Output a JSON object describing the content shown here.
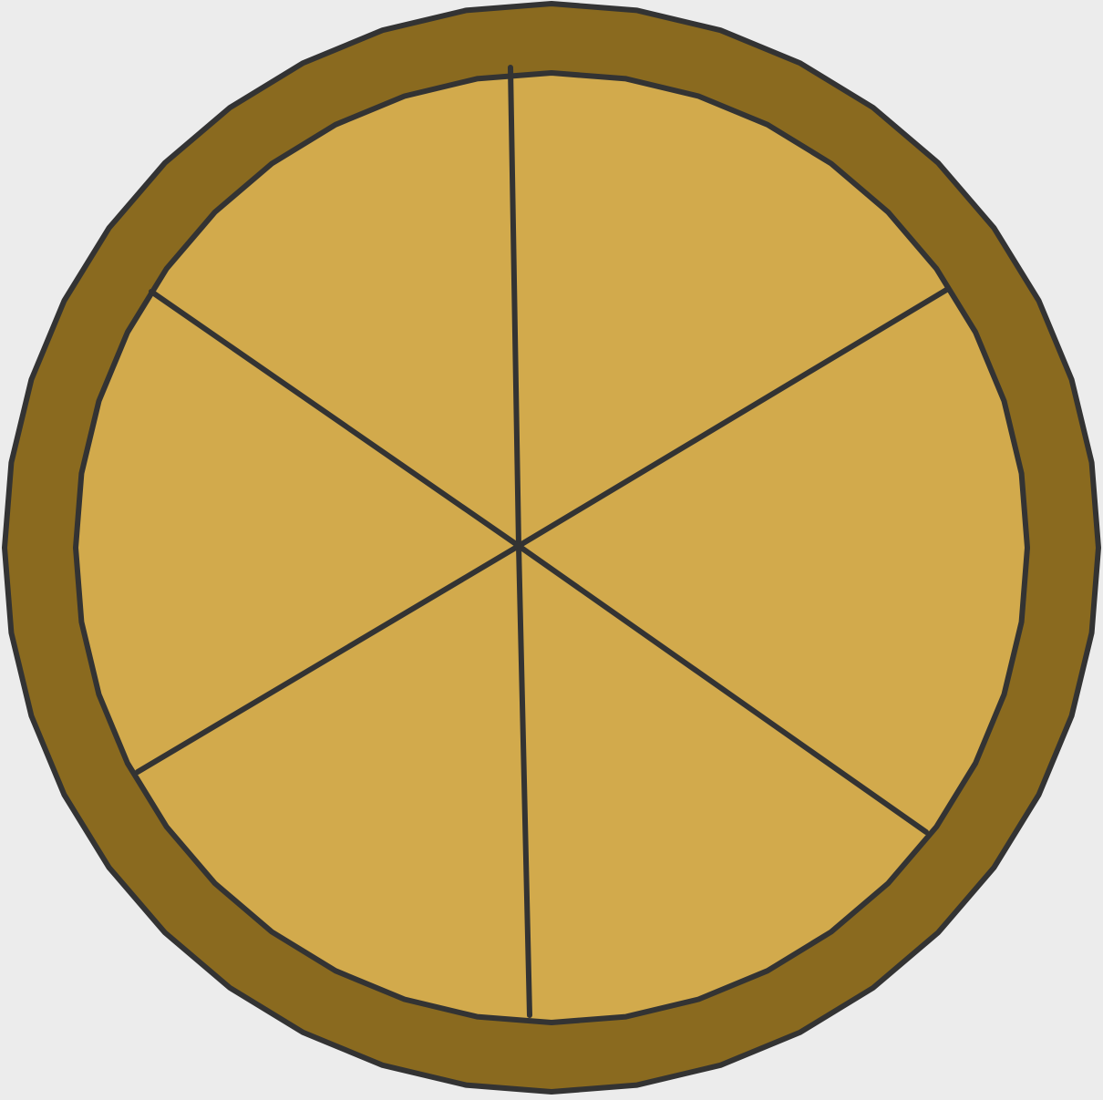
{
  "pizza": {
    "slice_count": 6,
    "colors": {
      "background": "#ececec",
      "crust": "#8a6a1f",
      "cheese": "#d2aa4c",
      "outline": "#333333"
    }
  }
}
